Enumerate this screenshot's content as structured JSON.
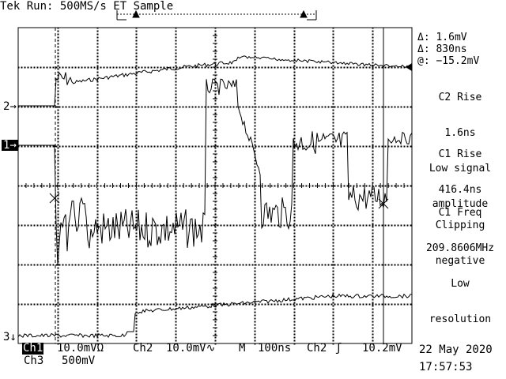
{
  "header": {
    "title": "Tek Run: 500MS/s ET Sample"
  },
  "markers": {
    "ch2": "2",
    "ch1": "1",
    "ch3": "3"
  },
  "readout": {
    "delta_v": "Δ: 1.6mV",
    "delta_t": "Δ: 830ns",
    "at_v": "@: −15.2mV"
  },
  "measurements": [
    {
      "name": "C2 Rise",
      "value": "1.6ns",
      "note1": "Low signal",
      "note2": "amplitude"
    },
    {
      "name": "C1 Rise",
      "value": "416.4ns",
      "note1": "Clipping",
      "note2": "negative"
    },
    {
      "name": "C1 Freq",
      "value": "209.8606MHz",
      "note1": "Low",
      "note2": "resolution"
    }
  ],
  "status": {
    "ch1_label": "Ch1",
    "ch1_scale": "10.0mVΩ",
    "ch2_label": "Ch2",
    "ch2_scale": "10.0mV∿",
    "time_label": "M",
    "time_scale": "100ns",
    "trigger_source": "Ch2",
    "trigger_slope": "ʃ",
    "trigger_level": "10.2mV",
    "ch3_label": "Ch3",
    "ch3_scale": "500mV",
    "date": "22 May 2020",
    "time": "17:57:53"
  }
}
